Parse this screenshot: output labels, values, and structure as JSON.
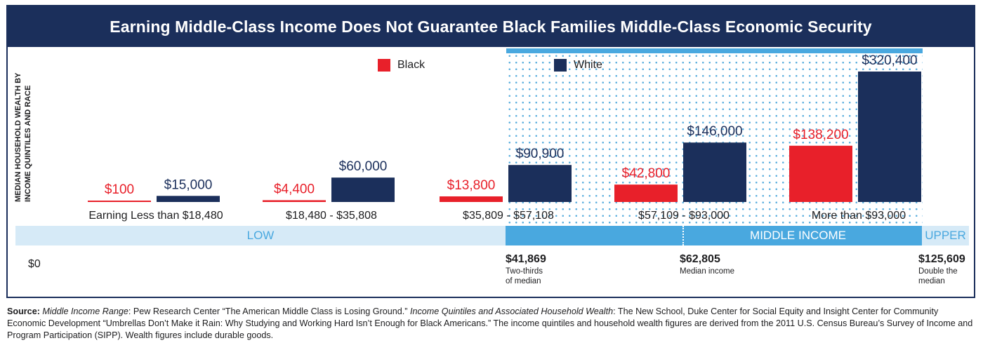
{
  "title": "Earning Middle-Class Income Does Not Guarantee Black Families Middle-Class Economic Security",
  "ylabel_line1": "MEDIAN HOUSEHOLD WEALTH BY",
  "ylabel_line2": "INCOME QUINTILES AND RACE",
  "colors": {
    "black": "#e8202a",
    "white": "#1b2f5b",
    "band_light": "#d6eaf7",
    "band_mid": "#49a8df"
  },
  "chart_data": {
    "type": "bar",
    "title": "Earning Middle-Class Income Does Not Guarantee Black Families Middle-Class Economic Security",
    "ylabel": "MEDIAN HOUSEHOLD WEALTH BY INCOME QUINTILES AND RACE",
    "categories": [
      "Earning Less than $18,480",
      "$18,480 - $35,808",
      "$35,809 - $57,108",
      "$57,109 - $93,000",
      "More than $93,000"
    ],
    "series": [
      {
        "name": "Black",
        "values": [
          100,
          4400,
          13800,
          42800,
          138200
        ],
        "labels": [
          "$100",
          "$4,400",
          "$13,800",
          "$42,800",
          "$138,200"
        ]
      },
      {
        "name": "White",
        "values": [
          15000,
          60000,
          90900,
          146000,
          320400
        ],
        "labels": [
          "$15,000",
          "$60,000",
          "$90,900",
          "$146,000",
          "$320,400"
        ]
      }
    ],
    "legend": "top-center"
  },
  "bands": {
    "low": "LOW",
    "middle": "MIDDLE INCOME",
    "upper": "UPPER"
  },
  "markers": {
    "zero": "$0",
    "m1_value": "$41,869",
    "m1_note1": "Two-thirds",
    "m1_note2": "of median",
    "m2_value": "$62,805",
    "m2_note1": "Median income",
    "m3_value": "$125,609",
    "m3_note1": "Double the",
    "m3_note2": "median"
  },
  "source": {
    "label": "Source:",
    "t1": "Middle Income Range",
    "t2": ": Pew Research Center “The American Middle Class is Losing Ground.” ",
    "t3": "Income Quintiles and Associated Household Wealth",
    "t4": ": The New School, Duke Center for Social Equity and Insight Center for Community Economic Development “Umbrellas Don’t Make it Rain: Why Studying and Working Hard Isn’t Enough for Black Americans.”  The income quintiles and household wealth figures are derived from the 2011 U.S. Census Bureau’s Survey of Income and Program Participation (SIPP). Wealth figures include durable goods."
  }
}
